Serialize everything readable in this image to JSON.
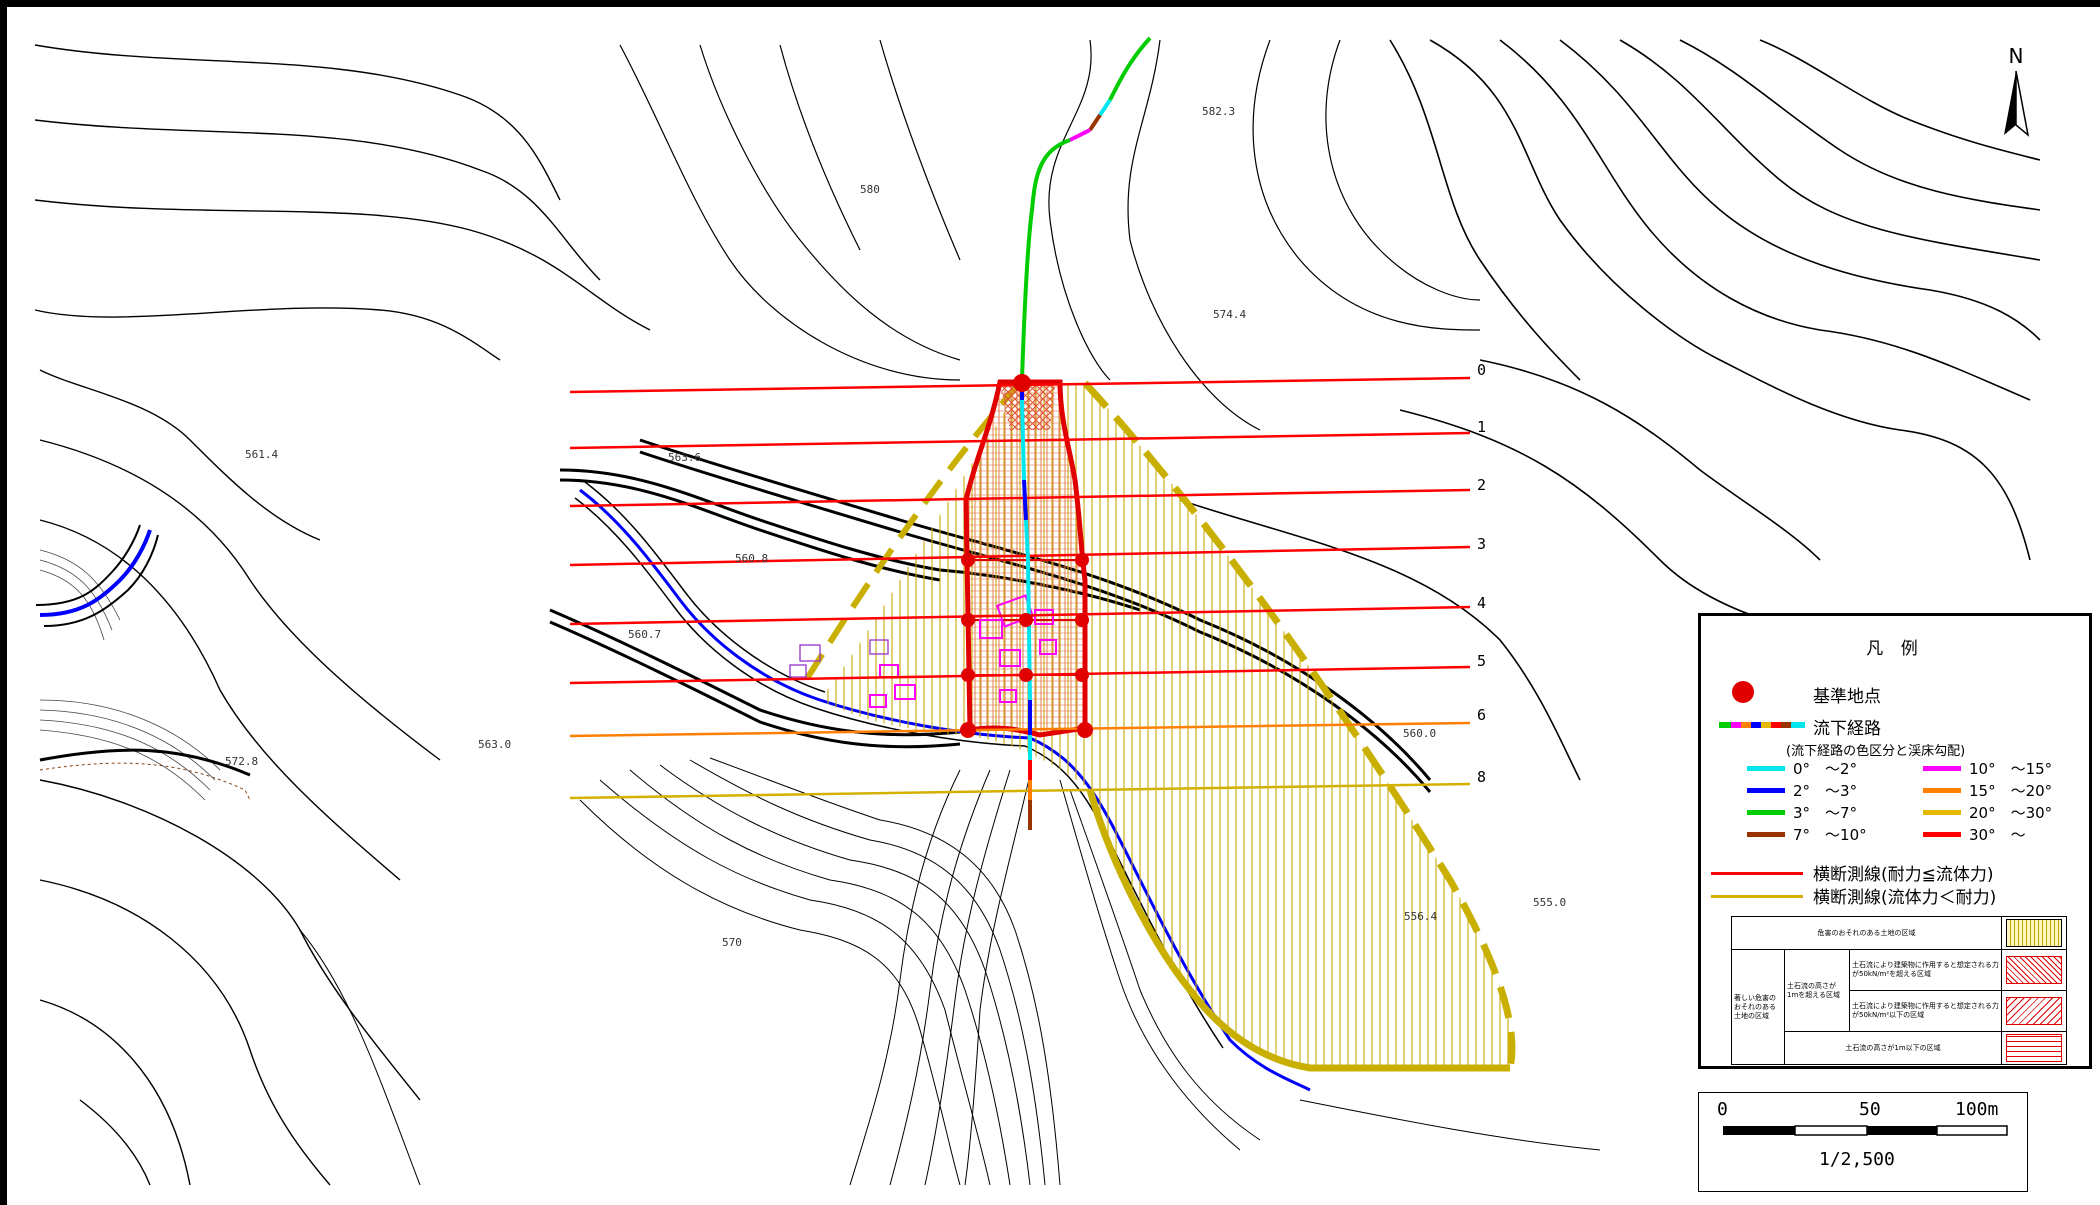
{
  "map": {
    "elevations": [
      "582.3",
      "580",
      "574.4",
      "561.4",
      "563.6",
      "560.8",
      "560.7",
      "563.0",
      "572.8",
      "560.0",
      "556.4",
      "555.0",
      "570"
    ],
    "section_numbers": [
      "0",
      "1",
      "2",
      "3",
      "4",
      "5",
      "6",
      "8"
    ],
    "north_label": "N"
  },
  "legend": {
    "title": "凡 例",
    "reference_point": "基準地点",
    "flow_path": "流下経路",
    "flow_path_note": "(流下経路の色区分と渓床勾配)",
    "gradients": [
      {
        "label": "0°　～2°",
        "color": "#00e5ee"
      },
      {
        "label": "10°　～15°",
        "color": "#ff00ff"
      },
      {
        "label": "2°　～3°",
        "color": "#0000ff"
      },
      {
        "label": "15°　～20°",
        "color": "#ff8000"
      },
      {
        "label": "3°　～7°",
        "color": "#00cc00"
      },
      {
        "label": "20°　～30°",
        "color": "#e6b800"
      },
      {
        "label": "7°　～10°",
        "color": "#993300"
      },
      {
        "label": "30°　～",
        "color": "#ff0000"
      }
    ],
    "section_red": "横断測線(耐力≦流体力)",
    "section_yellow": "横断測線(流体力＜耐力)",
    "zones": {
      "hazard_area": "危害のおそれのある土地の区域",
      "severe_area": "著しい危害のおそれのある土地の区域",
      "height_over": "土石流の高さが1mを超える区域",
      "over_50": "土石流により建築物に作用すると想定される力が50kN/m²を超える区域",
      "under_50": "土石流により建築物に作用すると想定される力が50kN/m²以下の区域",
      "height_under": "土石流の高さが1m以下の区域"
    }
  },
  "scale": {
    "tick0": "0",
    "tick50": "50",
    "tick100": "100m",
    "ratio": "1/2,500"
  }
}
